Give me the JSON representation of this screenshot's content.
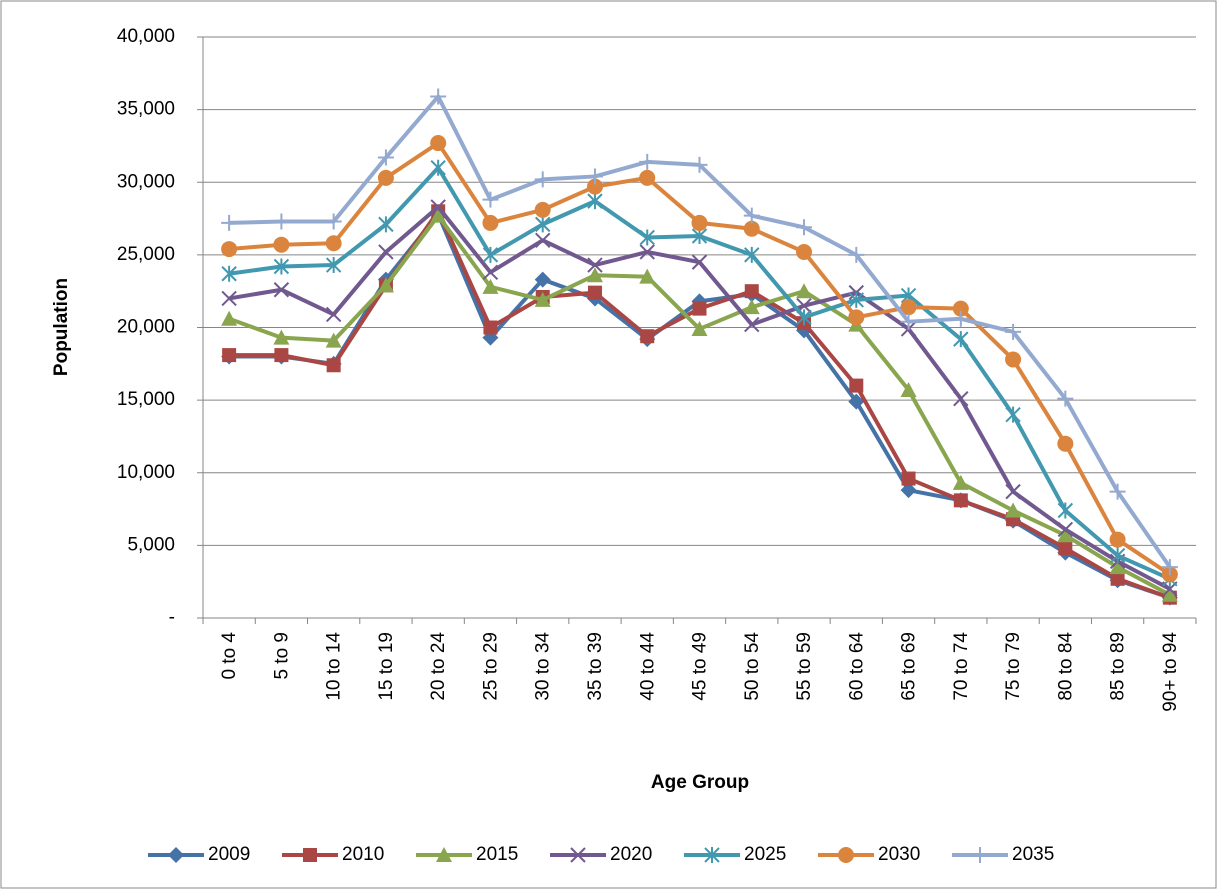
{
  "chart_data": {
    "type": "line",
    "x_label": "Age Group",
    "y_label": "Population",
    "categories": [
      "0 to 4",
      "5 to 9",
      "10 to 14",
      "15 to 19",
      "20 to 24",
      "25 to 29",
      "30 to 34",
      "35 to 39",
      "40 to 44",
      "45 to 49",
      "50 to 54",
      "55 to 59",
      "60 to 64",
      "65 to 69",
      "70 to 74",
      "75 to 79",
      "80 to 84",
      "85 to 89",
      "90+ to 94"
    ],
    "ylim": [
      0,
      40000
    ],
    "yticks": [
      {
        "value": 0,
        "label": "-"
      },
      {
        "value": 5000,
        "label": "5,000"
      },
      {
        "value": 10000,
        "label": "10,000"
      },
      {
        "value": 15000,
        "label": "15,000"
      },
      {
        "value": 20000,
        "label": "20,000"
      },
      {
        "value": 25000,
        "label": "25,000"
      },
      {
        "value": 30000,
        "label": "30,000"
      },
      {
        "value": 35000,
        "label": "35,000"
      },
      {
        "value": 40000,
        "label": "40,000"
      }
    ],
    "grid": true,
    "legend": "bottom",
    "series": [
      {
        "name": "2009",
        "color": "#4572a7",
        "marker": "diamond",
        "values": [
          18000,
          18000,
          17500,
          23300,
          27800,
          19300,
          23300,
          22000,
          19200,
          21800,
          22300,
          19800,
          14900,
          8800,
          8100,
          6700,
          4500,
          2600,
          1400
        ]
      },
      {
        "name": "2010",
        "color": "#aa4643",
        "marker": "square",
        "values": [
          18100,
          18100,
          17400,
          22900,
          28000,
          20000,
          22100,
          22400,
          19400,
          21300,
          22500,
          20300,
          16000,
          9600,
          8100,
          6800,
          4800,
          2700,
          1400
        ]
      },
      {
        "name": "2015",
        "color": "#89a54e",
        "marker": "triangle",
        "values": [
          20600,
          19300,
          19100,
          22900,
          27700,
          22800,
          21900,
          23600,
          23500,
          19900,
          21400,
          22500,
          20200,
          15700,
          9300,
          7400,
          5700,
          3500,
          1600
        ]
      },
      {
        "name": "2020",
        "color": "#71588f",
        "marker": "x",
        "values": [
          22000,
          22600,
          20900,
          25200,
          28300,
          23800,
          26000,
          24300,
          25200,
          24500,
          20200,
          21500,
          22400,
          19900,
          15100,
          8700,
          6100,
          3900,
          2000
        ]
      },
      {
        "name": "2025",
        "color": "#4198af",
        "marker": "star",
        "values": [
          23700,
          24200,
          24300,
          27100,
          31000,
          25000,
          27100,
          28700,
          26200,
          26300,
          25000,
          20700,
          21900,
          22200,
          19200,
          14000,
          7400,
          4300,
          2700
        ]
      },
      {
        "name": "2030",
        "color": "#db843d",
        "marker": "circle",
        "values": [
          25400,
          25700,
          25800,
          30300,
          32700,
          27200,
          28100,
          29700,
          30300,
          27200,
          26800,
          25200,
          20700,
          21400,
          21300,
          17800,
          12000,
          5400,
          3000
        ]
      },
      {
        "name": "2035",
        "color": "#93a9cf",
        "marker": "plus",
        "values": [
          27200,
          27300,
          27300,
          31700,
          35900,
          28800,
          30200,
          30400,
          31400,
          31200,
          27700,
          26900,
          25000,
          20400,
          20600,
          19700,
          15100,
          8700,
          3500
        ]
      }
    ]
  }
}
